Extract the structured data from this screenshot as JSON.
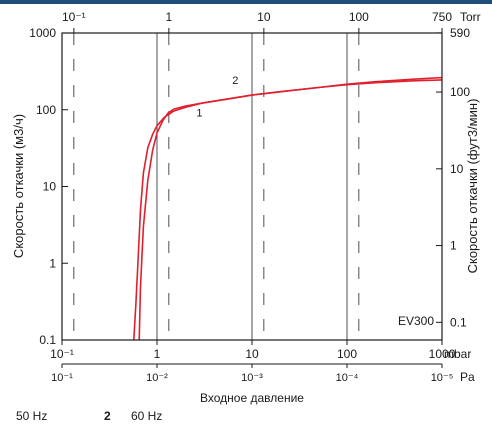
{
  "colors": {
    "top_bar": "#1f4e79",
    "curve": "#e0202e",
    "grid": "#222222",
    "frame": "#1a1a1a"
  },
  "chart_data": {
    "type": "line",
    "scale": "log-log",
    "grid": true,
    "top_axis": {
      "unit": "Torr",
      "ticks": [
        "10⁻¹",
        "1",
        "10",
        "100",
        "750"
      ]
    },
    "left_axis": {
      "label": "Скорость откачки (м3/ч)",
      "ticks": [
        "1000",
        "100",
        "10",
        "1",
        "0.1"
      ],
      "ylim": [
        0.1,
        1000
      ]
    },
    "right_axis": {
      "label": "Скорость откачки (фут3/мин)",
      "ticks": [
        "590",
        "100",
        "10",
        "1",
        "0.1"
      ]
    },
    "bottom_axis_1": {
      "unit": "mbar",
      "ticks": [
        "10⁻¹",
        "1",
        "10",
        "100",
        "1000"
      ],
      "xlim": [
        0.1,
        1000
      ]
    },
    "bottom_axis_2": {
      "unit": "Pa",
      "ticks": [
        "10⁻¹",
        "10⁻²",
        "10⁻³",
        "10⁻⁴",
        "10⁻⁵"
      ]
    },
    "xlabel": "Входное давление",
    "model_label": "EV300",
    "series": [
      {
        "name": "1",
        "legend": "50 Hz",
        "x": [
          0.65,
          0.67,
          0.72,
          0.8,
          0.9,
          1.0,
          1.15,
          1.3,
          1.5,
          2.0,
          3,
          5,
          10,
          20,
          50,
          100,
          200,
          500,
          1000
        ],
        "y": [
          0.1,
          0.5,
          3,
          12,
          30,
          50,
          72,
          90,
          102,
          112,
          122,
          135,
          155,
          172,
          195,
          212,
          225,
          238,
          245
        ]
      },
      {
        "name": "2",
        "legend": "60 Hz",
        "x": [
          0.57,
          0.6,
          0.63,
          0.67,
          0.72,
          0.8,
          0.9,
          1.0,
          1.2,
          1.5,
          2.0,
          3,
          5,
          10,
          20,
          50,
          100,
          200,
          500,
          1000
        ],
        "y": [
          0.1,
          0.3,
          1,
          5,
          15,
          32,
          48,
          62,
          80,
          96,
          108,
          122,
          135,
          155,
          172,
          195,
          215,
          232,
          250,
          262
        ]
      }
    ]
  },
  "legend": {
    "item1_label": "50 Hz",
    "item2_num": "2",
    "item2_label": "60 Hz"
  }
}
